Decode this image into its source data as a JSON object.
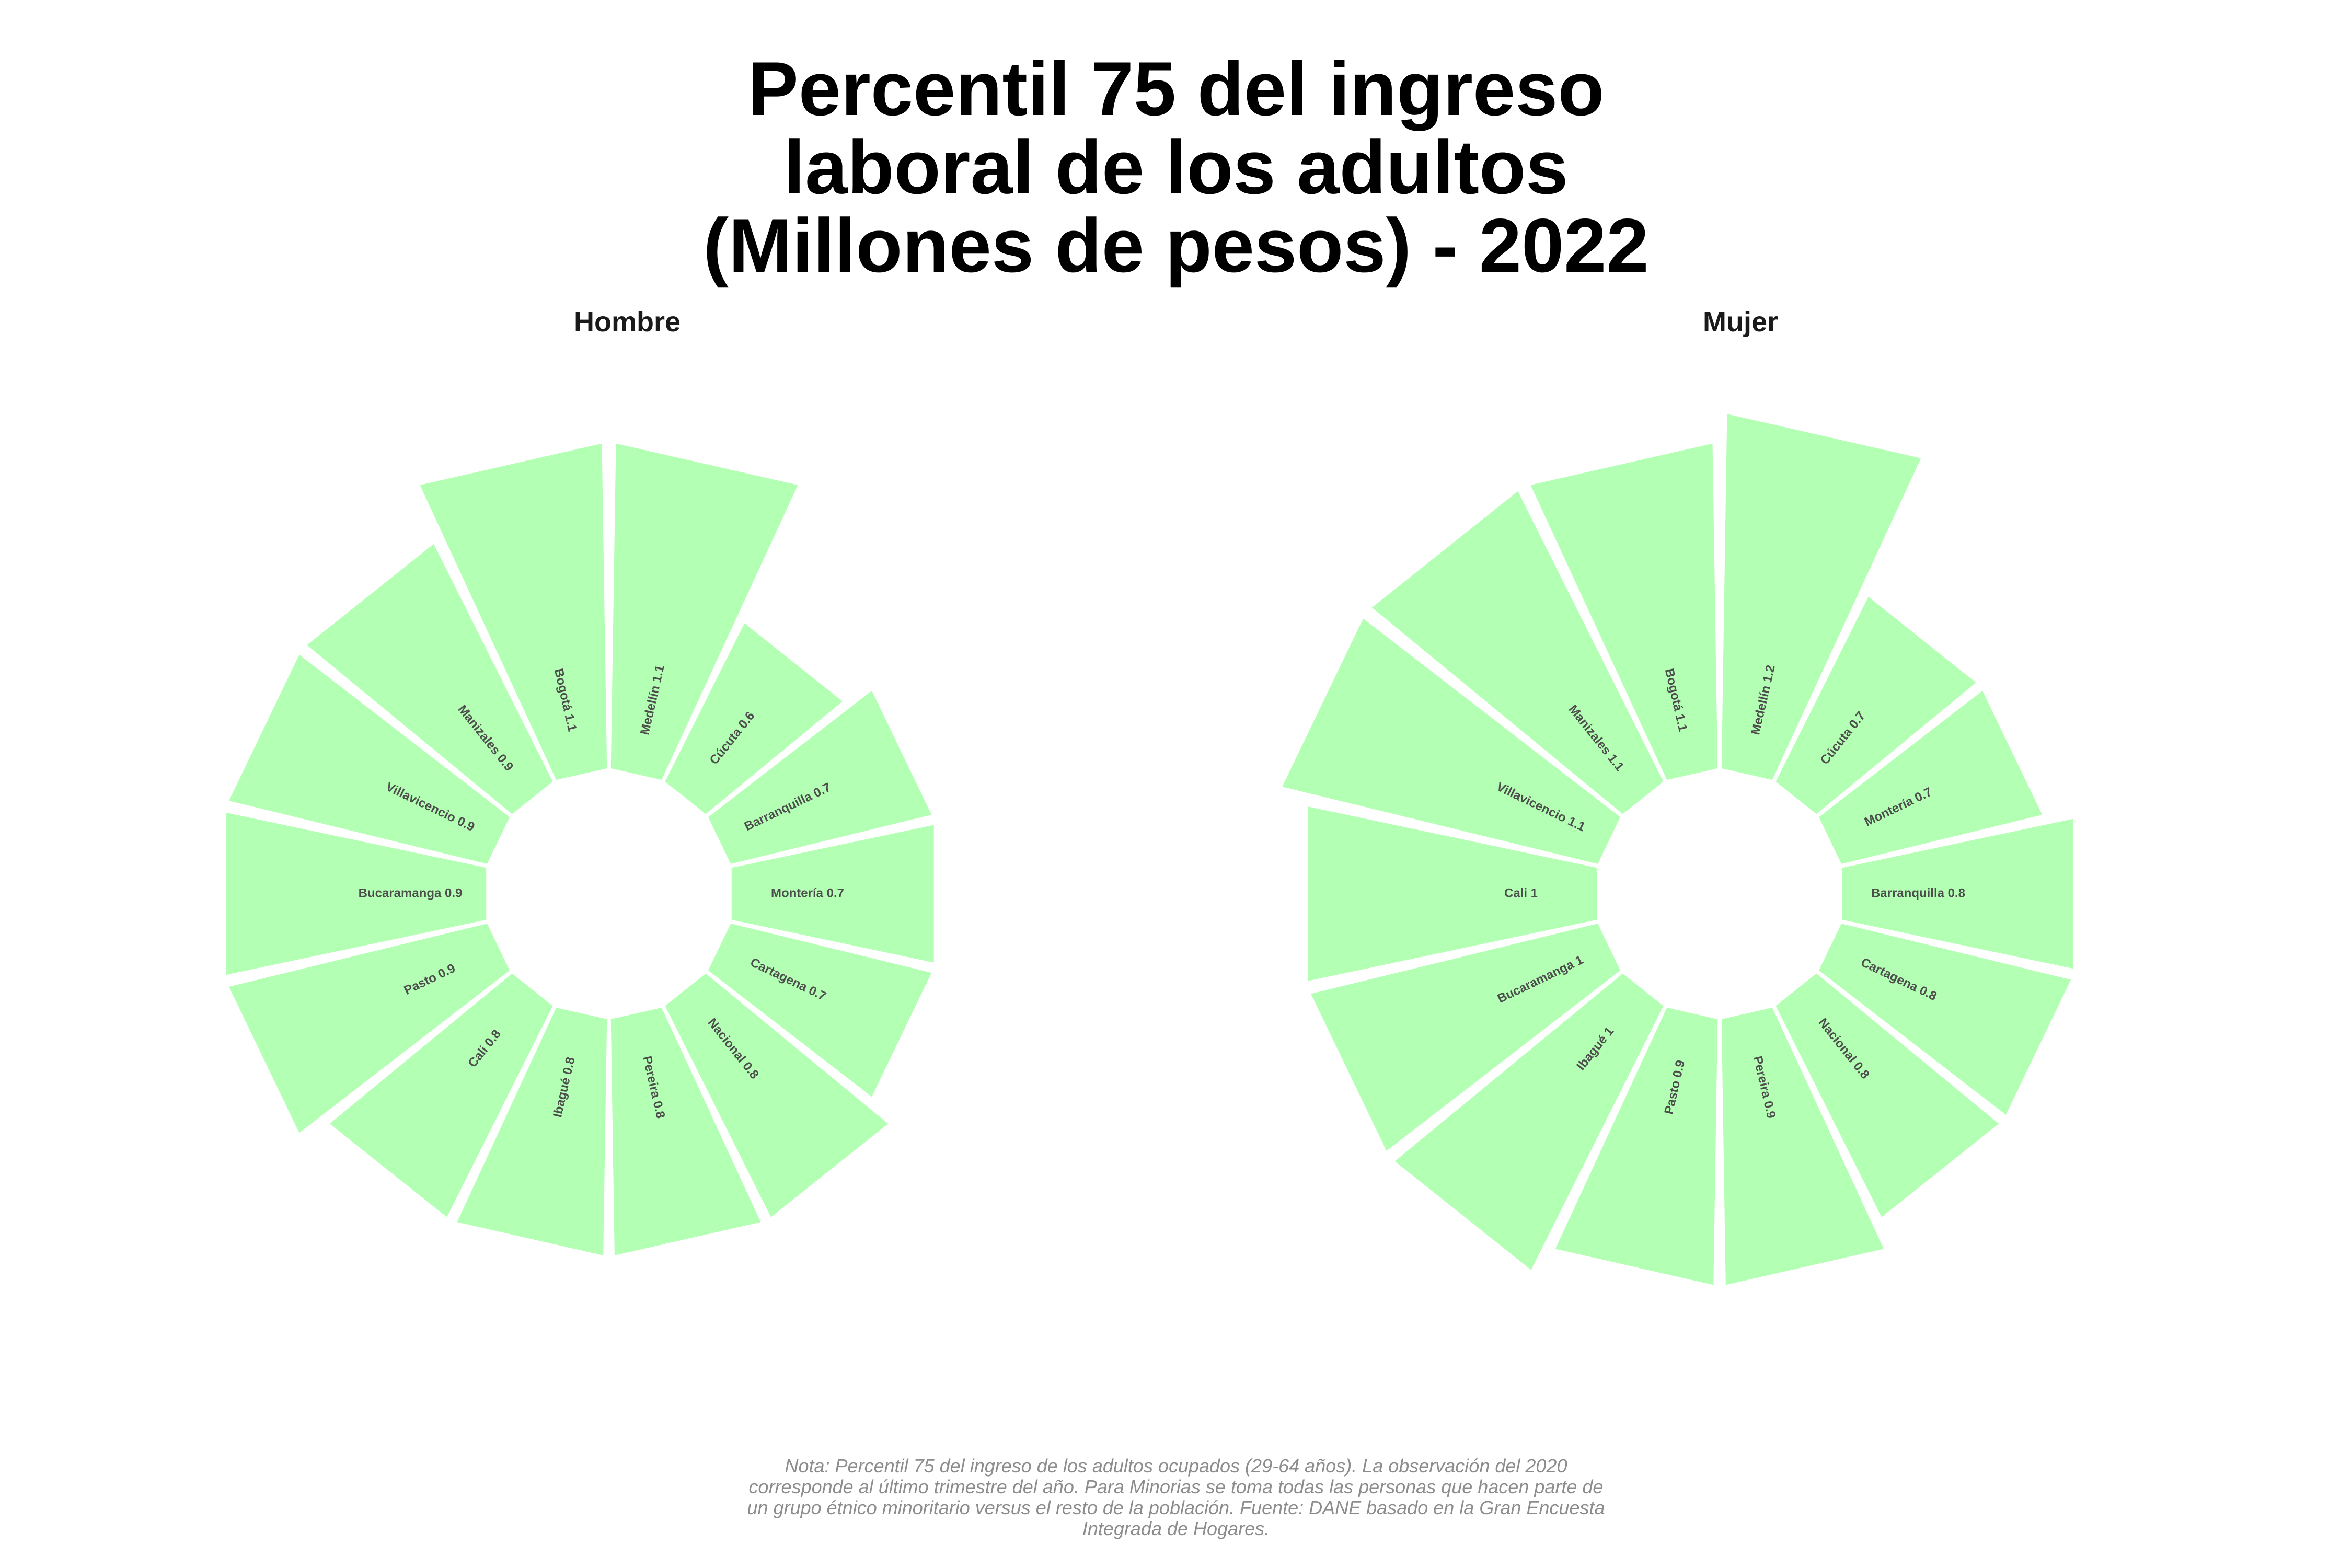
{
  "title_lines": [
    "Percentil 75 del ingreso",
    "laboral de los adultos",
    "(Millones de pesos) - 2022"
  ],
  "note_lines": [
    "Nota: Percentil 75 del ingreso de los adultos ocupados (29-64 años). La observación del 2020",
    "corresponde al último trimestre del año. Para Minorias se toma todas las personas que hacen parte de",
    "un grupo étnico minoritario versus el resto de la población. Fuente: DANE basado en la Gran Encuesta",
    "Integrada de Hogares."
  ],
  "colors": {
    "bar": "#b3ffb3",
    "label": "#4d4d4d"
  },
  "chart_data": [
    {
      "type": "bar",
      "polar": true,
      "panel": "Hombre",
      "categories": [
        "Medellín",
        "Cúcuta",
        "Barranquilla",
        "Montería",
        "Cartagena",
        "Nacional",
        "Pereira",
        "Ibagué",
        "Cali",
        "Pasto",
        "Bucaramanga",
        "Villavicencio",
        "Manizales",
        "Bogotá"
      ],
      "values": [
        1.1,
        0.6,
        0.7,
        0.7,
        0.7,
        0.8,
        0.8,
        0.8,
        0.8,
        0.9,
        0.9,
        0.9,
        0.9,
        1.1
      ],
      "labels": [
        "Medellín 1.1",
        "Cúcuta 0.6",
        "Barranquilla 0.7",
        "Montería 0.7",
        "Cartagena 0.7",
        "Nacional 0.8",
        "Pereira 0.8",
        "Ibagué 0.8",
        "Cali 0.8",
        "Pasto 0.9",
        "Bucaramanga 0.9",
        "Villavicencio 0.9",
        "Manizales 0.9",
        "Bogotá 1.1"
      ]
    },
    {
      "type": "bar",
      "polar": true,
      "panel": "Mujer",
      "categories": [
        "Medellín",
        "Cúcuta",
        "Montería",
        "Barranquilla",
        "Cartagena",
        "Nacional",
        "Pereira",
        "Pasto",
        "Ibagué",
        "Bucaramanga",
        "Cali",
        "Villavicencio",
        "Manizales",
        "Bogotá"
      ],
      "values": [
        1.2,
        0.7,
        0.7,
        0.8,
        0.8,
        0.8,
        0.9,
        0.9,
        1.0,
        1.0,
        1.0,
        1.1,
        1.1,
        1.1
      ],
      "labels": [
        "Medellín 1.2",
        "Cúcuta 0.7",
        "Montería 0.7",
        "Barranquilla 0.8",
        "Cartagena 0.8",
        "Nacional 0.8",
        "Pereira 0.9",
        "Pasto 0.9",
        "Ibagué 1",
        "Bucaramanga 1",
        "Cali 1",
        "Villavicencio 1.1",
        "Manizales 1.1",
        "Bogotá 1.1"
      ]
    }
  ]
}
